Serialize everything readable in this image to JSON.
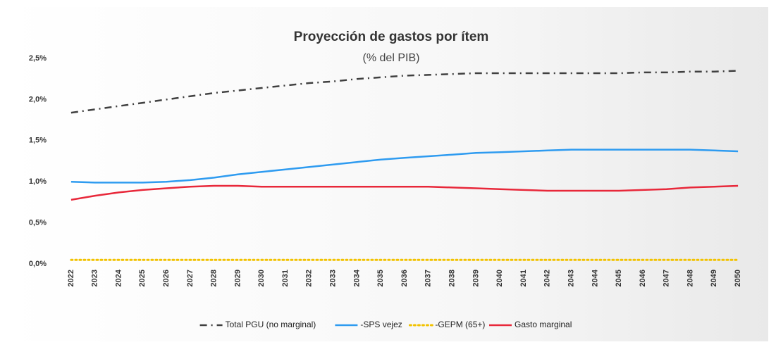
{
  "chart_data": {
    "type": "line",
    "title": "Proyección de gastos por ítem",
    "subtitle": "(% del PIB)",
    "categories": [
      "2022",
      "2023",
      "2024",
      "2025",
      "2026",
      "2027",
      "2028",
      "2029",
      "2030",
      "2031",
      "2032",
      "2033",
      "2034",
      "2035",
      "2036",
      "2037",
      "2038",
      "2039",
      "2040",
      "2041",
      "2042",
      "2043",
      "2044",
      "2045",
      "2046",
      "2047",
      "2048",
      "2049",
      "2050"
    ],
    "ylim": [
      0,
      2.5
    ],
    "yticks": [
      {
        "value": 0,
        "label": "0,0%"
      },
      {
        "value": 0.5,
        "label": "0,5%"
      },
      {
        "value": 1,
        "label": "1,0%"
      },
      {
        "value": 1.5,
        "label": "1,5%"
      },
      {
        "value": 2,
        "label": "2,0%"
      },
      {
        "value": 2.5,
        "label": "2,5%"
      }
    ],
    "grid": false,
    "legend": "bottom",
    "series": [
      {
        "name": "Total PGU (no marginal)",
        "color": "#404040",
        "style": "dashdot",
        "values": [
          1.84,
          1.88,
          1.92,
          1.96,
          2.0,
          2.04,
          2.08,
          2.11,
          2.14,
          2.17,
          2.2,
          2.22,
          2.25,
          2.27,
          2.29,
          2.3,
          2.31,
          2.32,
          2.32,
          2.32,
          2.32,
          2.32,
          2.32,
          2.32,
          2.33,
          2.33,
          2.34,
          2.34,
          2.35
        ]
      },
      {
        "name": "-SPS vejez",
        "color": "#2e9bf0",
        "style": "solid",
        "values": [
          1.0,
          0.99,
          0.99,
          0.99,
          1.0,
          1.02,
          1.05,
          1.09,
          1.12,
          1.15,
          1.18,
          1.21,
          1.24,
          1.27,
          1.29,
          1.31,
          1.33,
          1.35,
          1.36,
          1.37,
          1.38,
          1.39,
          1.39,
          1.39,
          1.39,
          1.39,
          1.39,
          1.38,
          1.37
        ]
      },
      {
        "name": "-GEPM (65+)",
        "color": "#f2c200",
        "style": "dotted",
        "values": [
          0.05,
          0.05,
          0.05,
          0.05,
          0.05,
          0.05,
          0.05,
          0.05,
          0.05,
          0.05,
          0.05,
          0.05,
          0.05,
          0.05,
          0.05,
          0.05,
          0.05,
          0.05,
          0.05,
          0.05,
          0.05,
          0.05,
          0.05,
          0.05,
          0.05,
          0.05,
          0.05,
          0.05,
          0.05
        ]
      },
      {
        "name": "Gasto marginal",
        "color": "#e8283a",
        "style": "solid",
        "values": [
          0.78,
          0.83,
          0.87,
          0.9,
          0.92,
          0.94,
          0.95,
          0.95,
          0.94,
          0.94,
          0.94,
          0.94,
          0.94,
          0.94,
          0.94,
          0.94,
          0.93,
          0.92,
          0.91,
          0.9,
          0.89,
          0.89,
          0.89,
          0.89,
          0.9,
          0.91,
          0.93,
          0.94,
          0.95
        ]
      }
    ]
  }
}
